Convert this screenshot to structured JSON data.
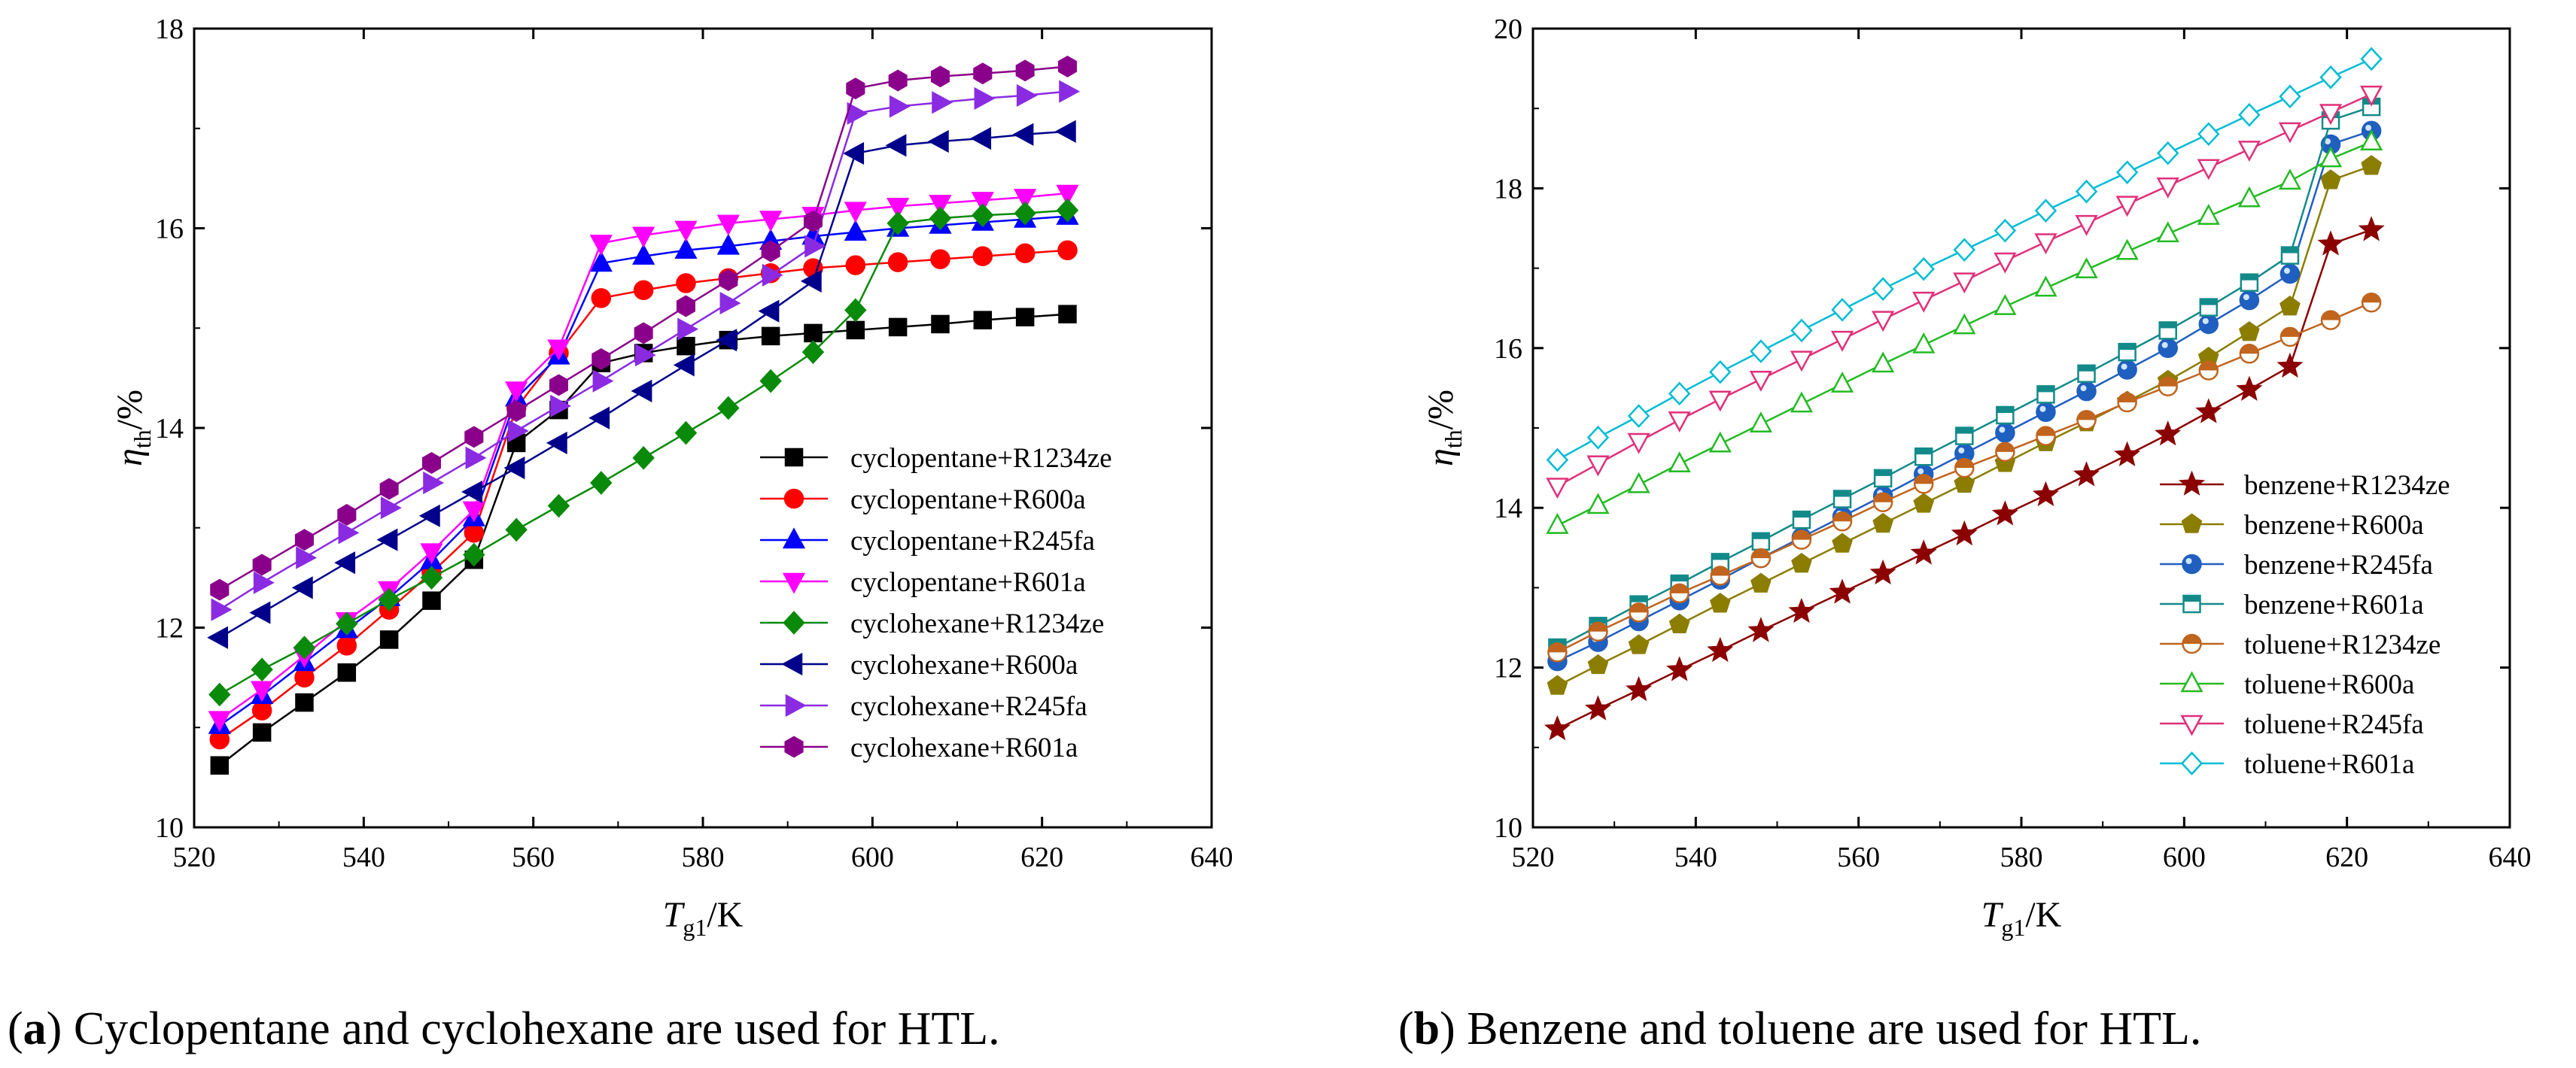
{
  "chart_data": [
    {
      "panel": "a",
      "type": "line",
      "caption": {
        "letter": "a",
        "text": "Cyclopentane and cyclohexane are used for HTL."
      },
      "xlabel": {
        "main": "T",
        "sub": "g1",
        "unit": "/K"
      },
      "ylabel": {
        "main": "η",
        "sub": "th",
        "unit": "/%"
      },
      "xlim": [
        520,
        640
      ],
      "ylim": [
        10,
        18
      ],
      "xticks": [
        520,
        540,
        560,
        580,
        600,
        620,
        640
      ],
      "yticks": [
        10,
        12,
        14,
        16,
        18
      ],
      "legend_position": "lower-right",
      "x": [
        523,
        528,
        533,
        538,
        543,
        548,
        553,
        558,
        563,
        568,
        573,
        578,
        583,
        588,
        593,
        598,
        603,
        608,
        613,
        618,
        623
      ],
      "series": [
        {
          "name": "cyclopentane+R1234ze",
          "marker": "square",
          "filled": true,
          "color": "#000000",
          "values": [
            10.62,
            10.95,
            11.25,
            11.55,
            11.88,
            12.27,
            12.68,
            13.85,
            14.18,
            14.65,
            14.75,
            14.82,
            14.88,
            14.92,
            14.95,
            14.98,
            15.01,
            15.04,
            15.08,
            15.11,
            15.14
          ]
        },
        {
          "name": "cyclopentane+R600a",
          "marker": "circle",
          "filled": true,
          "color": "#ff0000",
          "values": [
            10.88,
            11.17,
            11.5,
            11.82,
            12.18,
            12.55,
            12.95,
            14.2,
            14.75,
            15.3,
            15.38,
            15.45,
            15.5,
            15.55,
            15.6,
            15.63,
            15.66,
            15.69,
            15.72,
            15.75,
            15.78
          ]
        },
        {
          "name": "cyclopentane+R245fa",
          "marker": "triangle-up",
          "filled": true,
          "color": "#0000ff",
          "values": [
            11.02,
            11.32,
            11.65,
            11.98,
            12.3,
            12.67,
            13.1,
            14.3,
            14.72,
            15.65,
            15.72,
            15.78,
            15.82,
            15.87,
            15.92,
            15.96,
            16.0,
            16.03,
            16.06,
            16.09,
            16.12
          ]
        },
        {
          "name": "cyclopentane+R601a",
          "marker": "triangle-down",
          "filled": true,
          "color": "#ff00ff",
          "values": [
            11.08,
            11.38,
            11.72,
            12.07,
            12.38,
            12.76,
            13.18,
            14.38,
            14.8,
            15.85,
            15.93,
            15.99,
            16.05,
            16.09,
            16.13,
            16.18,
            16.22,
            16.25,
            16.28,
            16.31,
            16.35
          ]
        },
        {
          "name": "cyclohexane+R1234ze",
          "marker": "diamond",
          "filled": true,
          "color": "#0a8a0a",
          "values": [
            11.33,
            11.58,
            11.8,
            12.04,
            12.28,
            12.5,
            12.73,
            12.98,
            13.22,
            13.45,
            13.7,
            13.95,
            14.2,
            14.47,
            14.76,
            15.18,
            16.05,
            16.1,
            16.13,
            16.15,
            16.18
          ]
        },
        {
          "name": "cyclohexane+R600a",
          "marker": "triangle-left",
          "filled": true,
          "color": "#00008b",
          "values": [
            11.9,
            12.15,
            12.4,
            12.65,
            12.88,
            13.12,
            13.36,
            13.6,
            13.85,
            14.1,
            14.37,
            14.63,
            14.88,
            15.17,
            15.47,
            16.75,
            16.83,
            16.87,
            16.9,
            16.94,
            16.97
          ]
        },
        {
          "name": "cyclohexane+R245fa",
          "marker": "triangle-right",
          "filled": true,
          "color": "#8a2be2",
          "values": [
            12.18,
            12.45,
            12.7,
            12.95,
            13.2,
            13.45,
            13.7,
            13.97,
            14.22,
            14.47,
            14.73,
            14.99,
            15.25,
            15.53,
            15.82,
            17.15,
            17.22,
            17.26,
            17.3,
            17.33,
            17.37
          ]
        },
        {
          "name": "cyclohexane+R601a",
          "marker": "hexagon",
          "filled": true,
          "color": "#8b008b",
          "values": [
            12.38,
            12.63,
            12.88,
            13.13,
            13.39,
            13.65,
            13.91,
            14.17,
            14.43,
            14.69,
            14.95,
            15.22,
            15.48,
            15.77,
            16.07,
            17.4,
            17.48,
            17.52,
            17.55,
            17.58,
            17.62
          ]
        }
      ]
    },
    {
      "panel": "b",
      "type": "line",
      "caption": {
        "letter": "b",
        "text": "Benzene and toluene are used for HTL."
      },
      "xlabel": {
        "main": "T",
        "sub": "g1",
        "unit": "/K"
      },
      "ylabel": {
        "main": "η",
        "sub": "th",
        "unit": "/%"
      },
      "xlim": [
        520,
        640
      ],
      "ylim": [
        10,
        20
      ],
      "xticks": [
        520,
        540,
        560,
        580,
        600,
        620,
        640
      ],
      "yticks": [
        10,
        12,
        14,
        16,
        18,
        20
      ],
      "legend_position": "lower-right",
      "x": [
        523,
        528,
        533,
        538,
        543,
        548,
        553,
        558,
        563,
        568,
        573,
        578,
        583,
        588,
        593,
        598,
        603,
        608,
        613,
        618,
        623
      ],
      "series": [
        {
          "name": "benzene+R1234ze",
          "marker": "star",
          "filled": true,
          "color": "#8b0000",
          "values": [
            11.23,
            11.48,
            11.72,
            11.97,
            12.21,
            12.46,
            12.7,
            12.94,
            13.18,
            13.43,
            13.67,
            13.92,
            14.16,
            14.41,
            14.66,
            14.92,
            15.2,
            15.48,
            15.77,
            17.3,
            17.48
          ]
        },
        {
          "name": "benzene+R600a",
          "marker": "pentagon",
          "filled": true,
          "color": "#8b7d00",
          "values": [
            11.77,
            12.03,
            12.28,
            12.54,
            12.8,
            13.05,
            13.3,
            13.55,
            13.8,
            14.05,
            14.3,
            14.56,
            14.82,
            15.07,
            15.33,
            15.59,
            15.88,
            16.2,
            16.52,
            18.1,
            18.28
          ]
        },
        {
          "name": "benzene+R245fa",
          "marker": "sphere",
          "filled": true,
          "color": "#1f5fbf",
          "values": [
            12.08,
            12.32,
            12.58,
            12.84,
            13.1,
            13.37,
            13.63,
            13.89,
            14.15,
            14.42,
            14.68,
            14.94,
            15.2,
            15.46,
            15.73,
            16.0,
            16.3,
            16.6,
            16.93,
            18.55,
            18.72
          ]
        },
        {
          "name": "benzene+R601a",
          "marker": "square-dot",
          "filled": false,
          "color": "#138a8a",
          "values": [
            12.25,
            12.52,
            12.79,
            13.05,
            13.32,
            13.58,
            13.85,
            14.11,
            14.37,
            14.64,
            14.9,
            15.16,
            15.42,
            15.68,
            15.95,
            16.22,
            16.51,
            16.82,
            17.16,
            18.85,
            19.02
          ]
        },
        {
          "name": "toluene+R1234ze",
          "marker": "circle-half",
          "filled": false,
          "color": "#c0641e",
          "values": [
            12.19,
            12.45,
            12.69,
            12.93,
            13.15,
            13.37,
            13.6,
            13.83,
            14.07,
            14.3,
            14.5,
            14.7,
            14.9,
            15.1,
            15.32,
            15.52,
            15.72,
            15.93,
            16.14,
            16.35,
            16.57
          ]
        },
        {
          "name": "toluene+R600a",
          "marker": "triangle-up",
          "filled": false,
          "color": "#22bb22",
          "values": [
            13.78,
            14.03,
            14.29,
            14.55,
            14.8,
            15.05,
            15.3,
            15.55,
            15.8,
            16.04,
            16.28,
            16.52,
            16.75,
            16.98,
            17.21,
            17.43,
            17.65,
            17.87,
            18.09,
            18.37,
            18.58
          ]
        },
        {
          "name": "toluene+R245fa",
          "marker": "triangle-down",
          "filled": false,
          "color": "#e0307a",
          "values": [
            14.27,
            14.55,
            14.83,
            15.1,
            15.36,
            15.61,
            15.86,
            16.11,
            16.36,
            16.6,
            16.84,
            17.09,
            17.33,
            17.56,
            17.8,
            18.03,
            18.26,
            18.49,
            18.72,
            18.95,
            19.18
          ]
        },
        {
          "name": "toluene+R601a",
          "marker": "diamond",
          "filled": false,
          "color": "#00bcd4",
          "values": [
            14.6,
            14.88,
            15.15,
            15.43,
            15.7,
            15.96,
            16.22,
            16.48,
            16.74,
            16.99,
            17.23,
            17.47,
            17.72,
            17.96,
            18.2,
            18.44,
            18.68,
            18.92,
            19.15,
            19.39,
            19.62
          ]
        }
      ]
    }
  ]
}
